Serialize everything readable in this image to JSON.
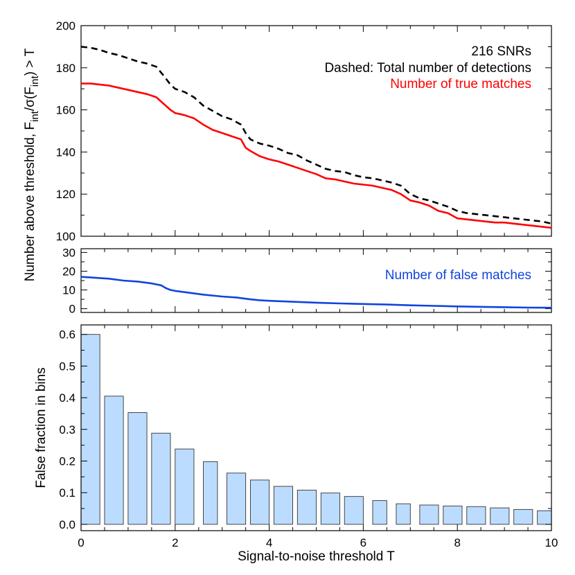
{
  "chart_data": [
    {
      "type": "line",
      "panel": "top",
      "ylim": [
        100,
        200
      ],
      "xlim": [
        0,
        10
      ],
      "yticks": [
        "100",
        "120",
        "140",
        "160",
        "180",
        "200"
      ],
      "annotations": [
        {
          "text": "216 SNRs",
          "color": "#000000"
        },
        {
          "text": "Dashed: Total number of detections",
          "color": "#000000"
        },
        {
          "text": "Number of true matches",
          "color": "#ff0000"
        }
      ],
      "series": [
        {
          "name": "Dashed: Total number of detections",
          "color": "#000000",
          "dashed": true,
          "x": [
            0,
            0.2,
            0.4,
            0.6,
            0.8,
            1.0,
            1.2,
            1.4,
            1.6,
            1.8,
            1.9,
            2.0,
            2.2,
            2.4,
            2.6,
            2.8,
            3.0,
            3.2,
            3.4,
            3.5,
            3.6,
            3.8,
            4.0,
            4.2,
            4.4,
            4.6,
            4.8,
            5.0,
            5.2,
            5.4,
            5.6,
            5.8,
            6.0,
            6.2,
            6.4,
            6.6,
            6.8,
            7.0,
            7.2,
            7.4,
            7.6,
            7.8,
            8.0,
            8.2,
            8.4,
            8.6,
            8.8,
            9.0,
            9.2,
            9.4,
            9.6,
            9.8,
            10.0
          ],
          "y": [
            190,
            189.5,
            188.5,
            187,
            186,
            184.5,
            183,
            182,
            180.5,
            175,
            172,
            170,
            168.5,
            166,
            162,
            159.5,
            157,
            155.5,
            153,
            149,
            146,
            144,
            143,
            141.5,
            139.5,
            138.5,
            136,
            134,
            132,
            131,
            130.5,
            129,
            128,
            127.5,
            126.5,
            125.5,
            124,
            120,
            118,
            117,
            115.5,
            114,
            112,
            111,
            110.5,
            110,
            109.5,
            109,
            108.5,
            108,
            107.5,
            107,
            106
          ]
        },
        {
          "name": "Number of true matches",
          "color": "#ff0000",
          "dashed": false,
          "x": [
            0,
            0.2,
            0.4,
            0.6,
            0.8,
            1.0,
            1.2,
            1.4,
            1.6,
            1.8,
            1.9,
            2.0,
            2.2,
            2.4,
            2.6,
            2.8,
            3.0,
            3.2,
            3.4,
            3.5,
            3.6,
            3.8,
            4.0,
            4.2,
            4.4,
            4.6,
            4.8,
            5.0,
            5.2,
            5.4,
            5.6,
            5.8,
            6.0,
            6.2,
            6.4,
            6.6,
            6.8,
            7.0,
            7.2,
            7.4,
            7.6,
            7.8,
            8.0,
            8.2,
            8.4,
            8.6,
            8.8,
            9.0,
            9.2,
            9.4,
            9.6,
            9.8,
            10.0
          ],
          "y": [
            172.5,
            172.5,
            172,
            171.5,
            170.5,
            169.5,
            168.5,
            167.5,
            166,
            162,
            160,
            158.5,
            157.5,
            156,
            153,
            150.5,
            149,
            147.5,
            146,
            142,
            140.5,
            138,
            136.5,
            135.5,
            134,
            132.5,
            131,
            129.5,
            127.5,
            127,
            126,
            125,
            124.5,
            124,
            123,
            122,
            120,
            117,
            116,
            114.5,
            112,
            111,
            108.5,
            108,
            107.5,
            107,
            106.5,
            106.5,
            106,
            105.5,
            105,
            104.5,
            104
          ]
        }
      ]
    },
    {
      "type": "line",
      "panel": "middle",
      "ylim": [
        -2,
        32
      ],
      "xlim": [
        0,
        10
      ],
      "yticks": [
        "0",
        "10",
        "20",
        "30"
      ],
      "annotations": [
        {
          "text": "Number of false matches",
          "color": "#1144dd"
        }
      ],
      "series": [
        {
          "name": "Number of false matches",
          "color": "#1144dd",
          "dashed": false,
          "x": [
            0,
            0.3,
            0.6,
            0.9,
            1.2,
            1.5,
            1.7,
            1.8,
            1.9,
            2.0,
            2.3,
            2.6,
            3.0,
            3.3,
            3.6,
            3.8,
            4.0,
            4.5,
            5.0,
            5.5,
            6.0,
            6.5,
            7.0,
            7.5,
            8.0,
            8.5,
            9.0,
            9.5,
            10.0
          ],
          "y": [
            17,
            16.5,
            16,
            15,
            14.5,
            13.5,
            12.5,
            11,
            10,
            9.5,
            8.5,
            7.5,
            6.5,
            6,
            5,
            4.5,
            4.2,
            3.7,
            3.2,
            2.8,
            2.5,
            2.2,
            1.8,
            1.5,
            1.2,
            1.0,
            0.8,
            0.6,
            0.5
          ]
        }
      ],
      "ylabel": "Number above threshold, F_int/σ(F_int) > T"
    },
    {
      "type": "bar",
      "panel": "bottom",
      "xlabel": "Signal-to-noise threshold T",
      "ylabel": "False fraction in bins",
      "xlim": [
        0,
        10
      ],
      "ylim": [
        -0.02,
        0.63
      ],
      "xticks": [
        "0",
        "2",
        "4",
        "6",
        "8",
        "10"
      ],
      "yticks": [
        "0.0",
        "0.1",
        "0.2",
        "0.3",
        "0.4",
        "0.5",
        "0.6"
      ],
      "bar_color": "#bcdcff",
      "bins": [
        {
          "from": 0.0,
          "to": 0.4,
          "value": 0.6
        },
        {
          "from": 0.5,
          "to": 0.9,
          "value": 0.405
        },
        {
          "from": 1.0,
          "to": 1.4,
          "value": 0.353
        },
        {
          "from": 1.5,
          "to": 1.9,
          "value": 0.288
        },
        {
          "from": 2.0,
          "to": 2.4,
          "value": 0.238
        },
        {
          "from": 2.6,
          "to": 2.9,
          "value": 0.198
        },
        {
          "from": 3.1,
          "to": 3.5,
          "value": 0.162
        },
        {
          "from": 3.6,
          "to": 4.0,
          "value": 0.14
        },
        {
          "from": 4.1,
          "to": 4.5,
          "value": 0.12
        },
        {
          "from": 4.6,
          "to": 5.0,
          "value": 0.108
        },
        {
          "from": 5.1,
          "to": 5.5,
          "value": 0.099
        },
        {
          "from": 5.6,
          "to": 6.0,
          "value": 0.088
        },
        {
          "from": 6.2,
          "to": 6.5,
          "value": 0.075
        },
        {
          "from": 6.7,
          "to": 7.0,
          "value": 0.065
        },
        {
          "from": 7.2,
          "to": 7.6,
          "value": 0.061
        },
        {
          "from": 7.7,
          "to": 8.1,
          "value": 0.058
        },
        {
          "from": 8.2,
          "to": 8.6,
          "value": 0.056
        },
        {
          "from": 8.7,
          "to": 9.1,
          "value": 0.052
        },
        {
          "from": 9.2,
          "to": 9.6,
          "value": 0.047
        },
        {
          "from": 9.7,
          "to": 10.0,
          "value": 0.043
        }
      ]
    }
  ]
}
